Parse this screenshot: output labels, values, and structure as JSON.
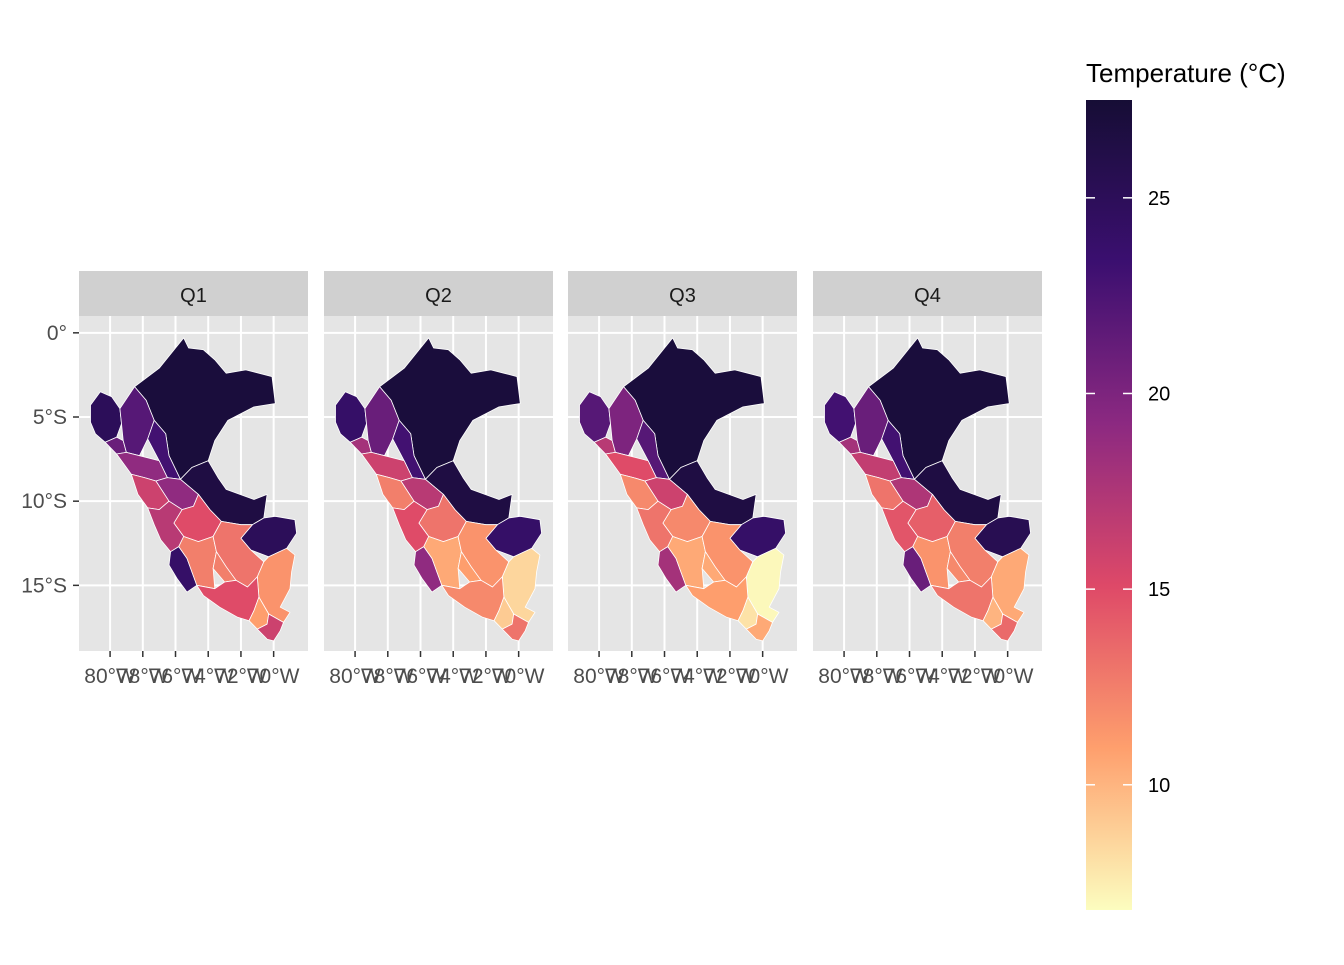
{
  "facets": [
    "Q1",
    "Q2",
    "Q3",
    "Q4"
  ],
  "axes": {
    "y_ticks": [
      "0°",
      "5°S",
      "10°S",
      "15°S"
    ],
    "x_ticks": [
      "80°W",
      "78°W",
      "76°W",
      "74°W",
      "72°W",
      "70°W"
    ]
  },
  "legend": {
    "title": "Temperature (°C)",
    "ticks": [
      "25",
      "20",
      "15",
      "10"
    ],
    "colors": [
      "#fcfdbf",
      "#fe9f6d",
      "#de4968",
      "#8c2981",
      "#3b0f70",
      "#160d35"
    ]
  },
  "colors": {
    "panel_background": "#e5e5e5",
    "strip_background": "#d0d0d0",
    "grid": "#ffffff",
    "region_border": "#ffffff"
  },
  "chart_data": {
    "type": "choropleth",
    "region": "Peru",
    "units": "°C",
    "scale": {
      "palette": "magma",
      "min": 6.8,
      "max": 27.5,
      "direction": "light-low"
    },
    "x_range_deg_lon": [
      -81.9,
      -67.9
    ],
    "y_range_deg_lat": [
      -18.9,
      1.0
    ],
    "facets": [
      {
        "name": "Q1",
        "regions": {
          "north_amazon": 27,
          "ucayali": 26.5,
          "madre_de_dios": 25,
          "tumbes_piura": 25,
          "lambayeque": 21,
          "cajamarca_amazonas": 22,
          "la_libertad": 19,
          "san_martin": 23,
          "ancash": 16,
          "huanuco": 19,
          "pasco_junin": 15,
          "lima": 17,
          "ica": 24,
          "ayacucho_huancavelica": 12.5,
          "cusco": 13,
          "apurimac": 12.5,
          "arequipa": 15,
          "puno": 11.5,
          "moquegua": 11,
          "tacna": 16
        }
      },
      {
        "name": "Q2",
        "regions": {
          "north_amazon": 27,
          "ucayali": 26.5,
          "madre_de_dios": 24,
          "tumbes_piura": 24,
          "lambayeque": 18,
          "cajamarca_amazonas": 21,
          "la_libertad": 16,
          "san_martin": 23,
          "ancash": 12.5,
          "huanuco": 17,
          "pasco_junin": 13,
          "lima": 15,
          "ica": 19,
          "ayacucho_huancavelica": 10.5,
          "cusco": 11.5,
          "apurimac": 11,
          "arequipa": 12,
          "puno": 8.5,
          "moquegua": 9,
          "tacna": 13
        }
      },
      {
        "name": "Q3",
        "regions": {
          "north_amazon": 27,
          "ucayali": 26.5,
          "madre_de_dios": 24,
          "tumbes_piura": 22,
          "lambayeque": 17,
          "cajamarca_amazonas": 20,
          "la_libertad": 15,
          "san_martin": 22,
          "ancash": 12,
          "huanuco": 16,
          "pasco_junin": 12,
          "lima": 13,
          "ica": 18,
          "ayacucho_huancavelica": 10.5,
          "cusco": 11.5,
          "apurimac": 10.5,
          "arequipa": 11,
          "puno": 7,
          "moquegua": 8,
          "tacna": 10.5
        }
      },
      {
        "name": "Q4",
        "regions": {
          "north_amazon": 27,
          "ucayali": 26.5,
          "madre_de_dios": 25.5,
          "tumbes_piura": 23,
          "lambayeque": 18,
          "cajamarca_amazonas": 21,
          "la_libertad": 16.5,
          "san_martin": 23,
          "ancash": 13,
          "huanuco": 17.5,
          "pasco_junin": 14,
          "lima": 14.5,
          "ica": 21,
          "ayacucho_huancavelica": 11.5,
          "cusco": 12.5,
          "apurimac": 12,
          "arequipa": 13,
          "puno": 10.5,
          "moquegua": 10,
          "tacna": 13.5
        }
      }
    ]
  }
}
